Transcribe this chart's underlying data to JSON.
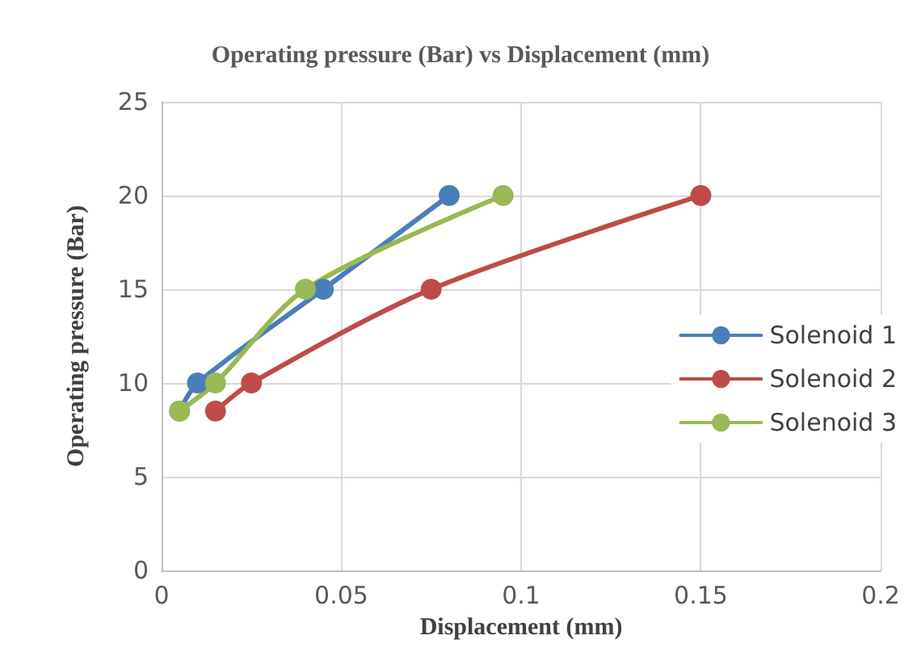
{
  "chart_data": {
    "type": "line",
    "title": "Operating pressure (Bar) vs Displacement (mm)",
    "xlabel": "Displacement (mm)",
    "ylabel": "Operating pressure (Bar)",
    "series": [
      {
        "name": "Solenoid 1",
        "color": "#4a7ebb",
        "x": [
          0.005,
          0.01,
          0.045,
          0.08
        ],
        "values": [
          8.5,
          10,
          15,
          20
        ]
      },
      {
        "name": "Solenoid 2",
        "color": "#be4b48",
        "x": [
          0.015,
          0.025,
          0.075,
          0.15
        ],
        "values": [
          8.5,
          10,
          15,
          20
        ]
      },
      {
        "name": "Solenoid 3",
        "color": "#98b954",
        "x": [
          0.005,
          0.015,
          0.04,
          0.095
        ],
        "values": [
          8.5,
          10,
          15,
          20
        ]
      }
    ],
    "xlim": [
      0,
      0.2
    ],
    "xticks": [
      0,
      0.05,
      0.1,
      0.15,
      0.2
    ],
    "ylim": [
      0,
      25
    ],
    "yticks": [
      0,
      5,
      10,
      15,
      20,
      25
    ],
    "grid": true,
    "legend": "right",
    "marker": "circle",
    "line_style": "solid"
  }
}
